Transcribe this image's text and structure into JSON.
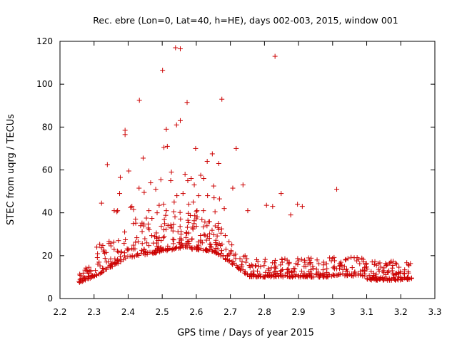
{
  "chart_data": {
    "type": "scatter",
    "title": "Rec. ebre (Lon=0, Lat=40, h=HE), days 002-003, 2015, window 001",
    "xlabel": "GPS time / Days of year 2015",
    "ylabel": "STEC from uqrg / TECUs",
    "xlim": [
      2.2,
      3.3
    ],
    "ylim": [
      0,
      120
    ],
    "x_ticks": [
      "2.2",
      "2.3",
      "2.4",
      "2.5",
      "2.6",
      "2.7",
      "2.8",
      "2.9",
      "3",
      "3.1",
      "3.2",
      "3.3"
    ],
    "y_ticks": [
      "0",
      "20",
      "40",
      "60",
      "80",
      "100",
      "120"
    ],
    "marker": "+",
    "color": "#cc0000",
    "grid": false,
    "series": [
      {
        "name": "STEC",
        "points": [
          [
            2.539,
            117
          ],
          [
            2.553,
            116.5
          ],
          [
            2.831,
            113
          ],
          [
            2.501,
            106.5
          ],
          [
            2.433,
            92.5
          ],
          [
            2.573,
            91.5
          ],
          [
            2.675,
            93
          ],
          [
            2.553,
            83
          ],
          [
            2.542,
            81
          ],
          [
            2.512,
            79
          ],
          [
            2.391,
            78.5
          ],
          [
            2.391,
            76.5
          ],
          [
            2.505,
            70.5
          ],
          [
            2.515,
            71
          ],
          [
            2.598,
            70
          ],
          [
            2.717,
            70
          ],
          [
            2.444,
            65.5
          ],
          [
            2.647,
            67.5
          ],
          [
            2.632,
            64
          ],
          [
            2.666,
            63
          ],
          [
            2.339,
            62.5
          ],
          [
            2.402,
            59.5
          ],
          [
            2.527,
            59
          ],
          [
            2.567,
            58
          ],
          [
            2.613,
            57.5
          ],
          [
            2.622,
            56
          ],
          [
            2.496,
            55.5
          ],
          [
            2.525,
            55
          ],
          [
            2.575,
            55
          ],
          [
            2.585,
            56
          ],
          [
            2.377,
            56.5
          ],
          [
            2.466,
            54
          ],
          [
            2.432,
            51.5
          ],
          [
            2.481,
            51
          ],
          [
            2.594,
            53
          ],
          [
            2.651,
            52.5
          ],
          [
            2.707,
            51.5
          ],
          [
            2.737,
            53
          ],
          [
            2.849,
            49
          ],
          [
            3.012,
            51
          ],
          [
            2.375,
            49
          ],
          [
            2.447,
            49.5
          ],
          [
            2.543,
            48
          ],
          [
            2.561,
            49
          ],
          [
            2.607,
            48
          ],
          [
            2.633,
            48
          ],
          [
            2.652,
            47
          ],
          [
            2.668,
            46.5
          ],
          [
            2.591,
            45
          ],
          [
            2.504,
            44
          ],
          [
            2.535,
            45
          ],
          [
            2.578,
            44
          ],
          [
            2.491,
            43.5
          ],
          [
            2.407,
            42.5
          ],
          [
            2.411,
            43
          ],
          [
            2.416,
            41.5
          ],
          [
            2.461,
            41
          ],
          [
            2.485,
            40
          ],
          [
            2.512,
            41
          ],
          [
            2.534,
            40.5
          ],
          [
            2.602,
            41
          ],
          [
            2.621,
            41
          ],
          [
            2.655,
            40.5
          ],
          [
            2.682,
            42
          ],
          [
            2.751,
            41
          ],
          [
            2.806,
            43.5
          ],
          [
            2.824,
            43
          ],
          [
            2.877,
            39
          ],
          [
            2.897,
            44
          ],
          [
            2.911,
            43
          ],
          [
            2.367,
            40.5
          ],
          [
            2.369,
            41
          ],
          [
            2.322,
            44.5
          ],
          [
            2.359,
            41
          ]
        ]
      }
    ]
  }
}
